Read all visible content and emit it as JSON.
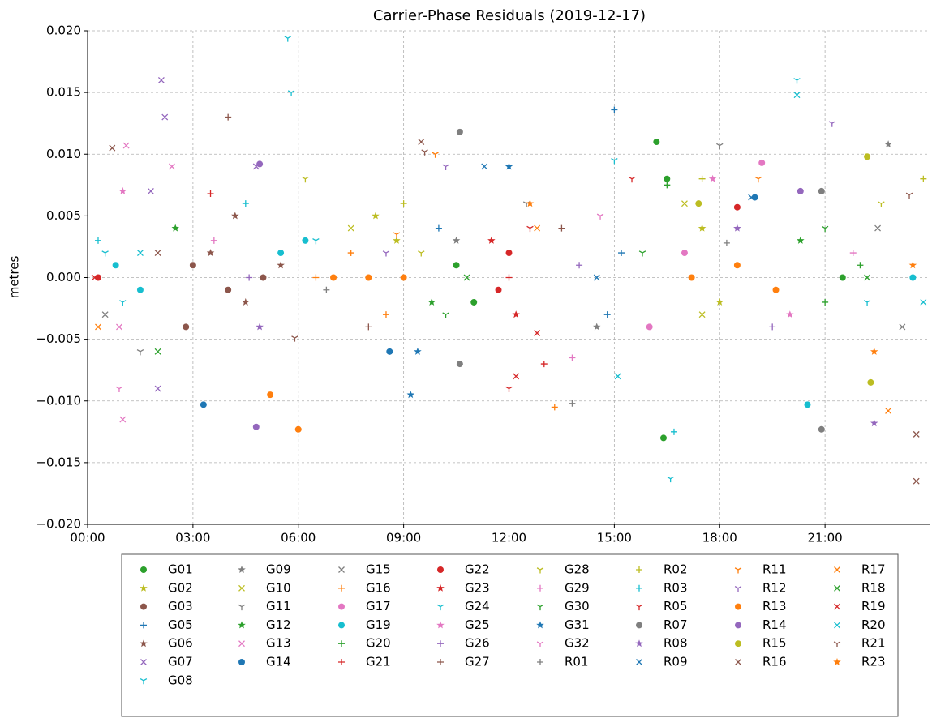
{
  "chart_data": {
    "type": "scatter",
    "title": "Carrier-Phase Residuals (2019-12-17)",
    "y_label": "metres",
    "xlim": [
      0,
      24
    ],
    "ylim": [
      -0.02,
      0.02
    ],
    "grid": true,
    "legend_position": "below",
    "xticks": [
      {
        "value": 0,
        "label": "00:00"
      },
      {
        "value": 3,
        "label": "03:00"
      },
      {
        "value": 6,
        "label": "06:00"
      },
      {
        "value": 9,
        "label": "09:00"
      },
      {
        "value": 12,
        "label": "12:00"
      },
      {
        "value": 15,
        "label": "15:00"
      },
      {
        "value": 18,
        "label": "18:00"
      },
      {
        "value": 21,
        "label": "21:00"
      }
    ],
    "yticks": [
      {
        "value": -0.02,
        "label": "−0.020"
      },
      {
        "value": -0.015,
        "label": "−0.015"
      },
      {
        "value": -0.01,
        "label": "−0.010"
      },
      {
        "value": -0.005,
        "label": "−0.005"
      },
      {
        "value": 0,
        "label": "0.000"
      },
      {
        "value": 0.005,
        "label": "0.005"
      },
      {
        "value": 0.01,
        "label": "0.010"
      },
      {
        "value": 0.015,
        "label": "0.015"
      },
      {
        "value": 0.02,
        "label": "0.020"
      }
    ],
    "series": [
      {
        "name": "G01",
        "color": "#2ca02c",
        "marker": "circle",
        "x": [
          16.2,
          16.4,
          16.5,
          10.5,
          11.0,
          21.5
        ],
        "y": [
          0.011,
          -0.013,
          0.008,
          0.001,
          -0.002,
          0.0
        ]
      },
      {
        "name": "G02",
        "color": "#bcbd22",
        "marker": "star",
        "x": [
          8.2,
          17.5,
          18.0,
          8.8
        ],
        "y": [
          0.005,
          0.004,
          -0.002,
          0.003
        ]
      },
      {
        "name": "G03",
        "color": "#8c564b",
        "marker": "circle",
        "x": [
          3.0,
          4.0,
          5.0,
          2.8
        ],
        "y": [
          0.001,
          -0.001,
          0.0,
          -0.004
        ]
      },
      {
        "name": "G05",
        "color": "#1f77b4",
        "marker": "plus",
        "x": [
          15.0,
          15.2,
          14.8,
          10.0
        ],
        "y": [
          0.0136,
          0.002,
          -0.003,
          0.004
        ]
      },
      {
        "name": "G06",
        "color": "#8c564b",
        "marker": "star",
        "x": [
          3.5,
          4.5,
          5.5,
          4.2
        ],
        "y": [
          0.002,
          -0.002,
          0.001,
          0.005
        ]
      },
      {
        "name": "G07",
        "color": "#9467bd",
        "marker": "x",
        "x": [
          2.1,
          2.2,
          2.0,
          4.8,
          1.8
        ],
        "y": [
          0.016,
          0.013,
          -0.009,
          0.009,
          0.007
        ]
      },
      {
        "name": "G08",
        "color": "#17becf",
        "marker": "tri",
        "x": [
          0.5,
          1.0,
          6.5,
          22.2
        ],
        "y": [
          0.002,
          -0.002,
          0.003,
          -0.002
        ]
      },
      {
        "name": "G09",
        "color": "#7f7f7f",
        "marker": "star",
        "x": [
          10.5,
          14.5,
          22.8
        ],
        "y": [
          0.003,
          -0.004,
          0.0108
        ]
      },
      {
        "name": "G10",
        "color": "#bcbd22",
        "marker": "x",
        "x": [
          7.5,
          17.0,
          17.5
        ],
        "y": [
          0.004,
          0.006,
          -0.003
        ]
      },
      {
        "name": "G11",
        "color": "#7f7f7f",
        "marker": "tri",
        "x": [
          1.5,
          12.5,
          18.0
        ],
        "y": [
          -0.006,
          0.006,
          0.0107
        ]
      },
      {
        "name": "G12",
        "color": "#2ca02c",
        "marker": "star",
        "x": [
          2.5,
          9.8,
          20.3
        ],
        "y": [
          0.004,
          -0.002,
          0.003
        ]
      },
      {
        "name": "G13",
        "color": "#e377c2",
        "marker": "x",
        "x": [
          1.1,
          1.0,
          2.4,
          0.9
        ],
        "y": [
          0.0107,
          -0.0115,
          0.009,
          -0.004
        ]
      },
      {
        "name": "G14",
        "color": "#1f77b4",
        "marker": "circle",
        "x": [
          3.3,
          8.6,
          19.0
        ],
        "y": [
          -0.0103,
          -0.006,
          0.0065
        ]
      },
      {
        "name": "G15",
        "color": "#7f7f7f",
        "marker": "x",
        "x": [
          22.5,
          23.2,
          0.5
        ],
        "y": [
          0.004,
          -0.004,
          -0.003
        ]
      },
      {
        "name": "G16",
        "color": "#ff7f0e",
        "marker": "plus",
        "x": [
          6.5,
          7.5,
          8.5,
          13.3
        ],
        "y": [
          0.0,
          0.002,
          -0.003,
          -0.0105
        ]
      },
      {
        "name": "G17",
        "color": "#e377c2",
        "marker": "circle",
        "x": [
          19.2,
          17.0,
          16.0
        ],
        "y": [
          0.0093,
          0.002,
          -0.004
        ]
      },
      {
        "name": "G19",
        "color": "#17becf",
        "marker": "circle",
        "x": [
          0.8,
          1.5,
          5.5,
          6.2,
          20.5,
          23.5
        ],
        "y": [
          0.001,
          -0.001,
          0.002,
          0.003,
          -0.0103,
          0.0
        ]
      },
      {
        "name": "G20",
        "color": "#2ca02c",
        "marker": "plus",
        "x": [
          16.5,
          22.0,
          21.0
        ],
        "y": [
          0.0075,
          0.001,
          -0.002
        ]
      },
      {
        "name": "G21",
        "color": "#d62728",
        "marker": "plus",
        "x": [
          3.5,
          12.0,
          13.0
        ],
        "y": [
          0.0068,
          0.0,
          -0.007
        ]
      },
      {
        "name": "G22",
        "color": "#d62728",
        "marker": "circle",
        "x": [
          0.3,
          11.7,
          12.0,
          18.5
        ],
        "y": [
          0.0,
          -0.001,
          0.002,
          0.0057
        ]
      },
      {
        "name": "G23",
        "color": "#d62728",
        "marker": "star",
        "x": [
          11.5,
          12.2
        ],
        "y": [
          0.003,
          -0.003
        ]
      },
      {
        "name": "G24",
        "color": "#17becf",
        "marker": "tri",
        "x": [
          5.7,
          5.8,
          20.2,
          15.0,
          16.6
        ],
        "y": [
          0.0194,
          0.015,
          0.016,
          0.0095,
          -0.0163
        ]
      },
      {
        "name": "G25",
        "color": "#e377c2",
        "marker": "star",
        "x": [
          1.0,
          17.8,
          20.0
        ],
        "y": [
          0.007,
          0.008,
          -0.003
        ]
      },
      {
        "name": "G26",
        "color": "#9467bd",
        "marker": "plus",
        "x": [
          4.6,
          14.0,
          19.5
        ],
        "y": [
          0.0,
          0.001,
          -0.004
        ]
      },
      {
        "name": "G27",
        "color": "#8c564b",
        "marker": "plus",
        "x": [
          4.0,
          8.0,
          13.5
        ],
        "y": [
          0.013,
          -0.004,
          0.004
        ]
      },
      {
        "name": "G28",
        "color": "#bcbd22",
        "marker": "tri",
        "x": [
          6.2,
          9.5,
          22.6
        ],
        "y": [
          0.008,
          0.002,
          0.006
        ]
      },
      {
        "name": "G29",
        "color": "#e377c2",
        "marker": "plus",
        "x": [
          3.6,
          13.8,
          21.8
        ],
        "y": [
          0.003,
          -0.0065,
          0.002
        ]
      },
      {
        "name": "G30",
        "color": "#2ca02c",
        "marker": "tri",
        "x": [
          10.2,
          15.8,
          21.0
        ],
        "y": [
          -0.003,
          0.002,
          0.004
        ]
      },
      {
        "name": "G31",
        "color": "#1f77b4",
        "marker": "star",
        "x": [
          9.2,
          12.0,
          9.4
        ],
        "y": [
          -0.0095,
          0.009,
          -0.006
        ]
      },
      {
        "name": "G32",
        "color": "#e377c2",
        "marker": "tri",
        "x": [
          0.9,
          14.6
        ],
        "y": [
          -0.009,
          0.005
        ]
      },
      {
        "name": "R01",
        "color": "#7f7f7f",
        "marker": "plus",
        "x": [
          6.8,
          13.8,
          18.2
        ],
        "y": [
          -0.001,
          -0.0102,
          0.0028
        ]
      },
      {
        "name": "R02",
        "color": "#bcbd22",
        "marker": "plus",
        "x": [
          9.0,
          17.5,
          23.8
        ],
        "y": [
          0.006,
          0.008,
          0.008
        ]
      },
      {
        "name": "R03",
        "color": "#17becf",
        "marker": "plus",
        "x": [
          0.3,
          16.7,
          4.5
        ],
        "y": [
          0.003,
          -0.0125,
          0.006
        ]
      },
      {
        "name": "R05",
        "color": "#d62728",
        "marker": "tri",
        "x": [
          12.0,
          12.6,
          15.5
        ],
        "y": [
          -0.009,
          0.004,
          0.008
        ]
      },
      {
        "name": "R07",
        "color": "#7f7f7f",
        "marker": "circle",
        "x": [
          10.6,
          10.6,
          20.9,
          20.9
        ],
        "y": [
          0.0118,
          -0.007,
          -0.0123,
          0.007
        ]
      },
      {
        "name": "R08",
        "color": "#9467bd",
        "marker": "star",
        "x": [
          4.9,
          22.4,
          18.5
        ],
        "y": [
          -0.004,
          -0.0118,
          0.004
        ]
      },
      {
        "name": "R09",
        "color": "#1f77b4",
        "marker": "x",
        "x": [
          14.5,
          11.3,
          18.9
        ],
        "y": [
          0.0,
          0.009,
          0.0065
        ]
      },
      {
        "name": "R11",
        "color": "#ff7f0e",
        "marker": "tri",
        "x": [
          8.8,
          9.9,
          19.1
        ],
        "y": [
          0.0035,
          0.01,
          0.008
        ]
      },
      {
        "name": "R12",
        "color": "#9467bd",
        "marker": "tri",
        "x": [
          8.5,
          10.2,
          21.2
        ],
        "y": [
          0.002,
          0.009,
          0.0125
        ]
      },
      {
        "name": "R13",
        "color": "#ff7f0e",
        "marker": "circle",
        "x": [
          7.0,
          8.0,
          9.0,
          17.2,
          18.5,
          19.6,
          6.0,
          5.2
        ],
        "y": [
          0.0,
          0.0,
          0.0,
          0.0,
          0.001,
          -0.001,
          -0.0123,
          -0.0095
        ]
      },
      {
        "name": "R14",
        "color": "#9467bd",
        "marker": "circle",
        "x": [
          4.8,
          4.9,
          20.3
        ],
        "y": [
          -0.0121,
          0.0092,
          0.007
        ]
      },
      {
        "name": "R15",
        "color": "#bcbd22",
        "marker": "circle",
        "x": [
          17.4,
          22.2,
          22.3
        ],
        "y": [
          0.006,
          0.0098,
          -0.0085
        ]
      },
      {
        "name": "R16",
        "color": "#8c564b",
        "marker": "x",
        "x": [
          0.7,
          2.0,
          9.5,
          23.6,
          23.6
        ],
        "y": [
          0.0105,
          0.002,
          0.011,
          -0.0165,
          -0.0127
        ]
      },
      {
        "name": "R17",
        "color": "#ff7f0e",
        "marker": "x",
        "x": [
          12.8,
          22.8,
          0.3
        ],
        "y": [
          0.004,
          -0.0108,
          -0.004
        ]
      },
      {
        "name": "R18",
        "color": "#2ca02c",
        "marker": "x",
        "x": [
          2.0,
          10.8,
          22.2
        ],
        "y": [
          -0.006,
          0.0,
          0.0
        ]
      },
      {
        "name": "R19",
        "color": "#d62728",
        "marker": "x",
        "x": [
          0.2,
          12.2,
          12.8
        ],
        "y": [
          0.0,
          -0.008,
          -0.0045
        ]
      },
      {
        "name": "R20",
        "color": "#17becf",
        "marker": "x",
        "x": [
          1.5,
          15.1,
          20.2,
          23.8
        ],
        "y": [
          0.002,
          -0.008,
          0.0148,
          -0.002
        ]
      },
      {
        "name": "R21",
        "color": "#8c564b",
        "marker": "tri",
        "x": [
          9.6,
          23.4,
          5.9
        ],
        "y": [
          0.0102,
          0.0067,
          -0.0049
        ]
      },
      {
        "name": "R23",
        "color": "#ff7f0e",
        "marker": "star",
        "x": [
          12.6,
          23.5,
          22.4
        ],
        "y": [
          0.006,
          0.001,
          -0.006
        ]
      }
    ]
  }
}
